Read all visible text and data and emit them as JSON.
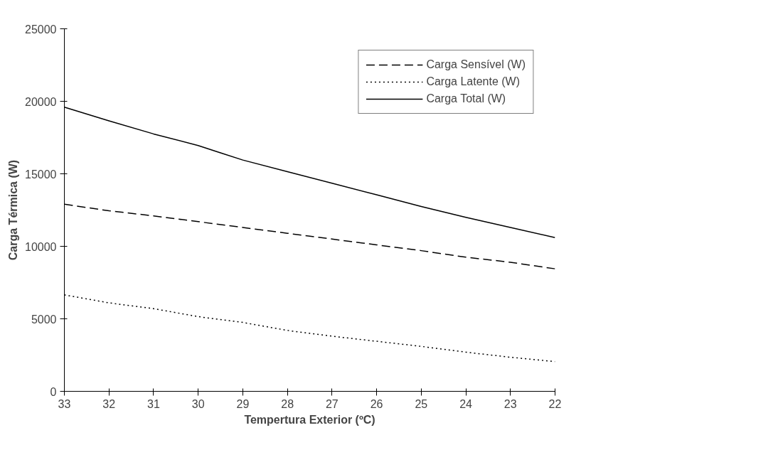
{
  "chart_data": {
    "type": "line",
    "xlabel": "Tempertura Exterior (ºC)",
    "ylabel": "Carga Térmica (W)",
    "xlim": [
      33,
      22
    ],
    "xticks": [
      33,
      32,
      31,
      30,
      29,
      28,
      27,
      26,
      25,
      24,
      23,
      22
    ],
    "ylim": [
      0,
      25000
    ],
    "yticks": [
      0,
      5000,
      10000,
      15000,
      20000,
      25000
    ],
    "grid": false,
    "legend": "top right",
    "series": [
      {
        "name": "Carga Sensível (W)",
        "color": "#000000",
        "line_style": "dashed",
        "x": [
          33,
          32,
          31,
          30,
          29,
          28,
          27,
          26,
          25,
          24,
          23,
          22
        ],
        "values": [
          12900,
          12450,
          12100,
          11700,
          11300,
          10900,
          10500,
          10100,
          9700,
          9250,
          8900,
          8450
        ]
      },
      {
        "name": "Carga Latente (W)",
        "color": "#000000",
        "line_style": "dotted",
        "x": [
          33,
          32,
          31,
          30,
          29,
          28,
          27,
          26,
          25,
          24,
          23,
          22
        ],
        "values": [
          6650,
          6100,
          5700,
          5150,
          4750,
          4200,
          3800,
          3450,
          3100,
          2700,
          2350,
          2050
        ]
      },
      {
        "name": "Carga Total (W)",
        "color": "#000000",
        "line_style": "solid",
        "x": [
          33,
          32,
          31,
          30,
          29.5,
          29,
          28,
          27,
          26,
          25,
          24,
          23,
          22
        ],
        "values": [
          19600,
          18650,
          17750,
          16950,
          16450,
          15950,
          15150,
          14350,
          13550,
          12750,
          12000,
          11300,
          10600
        ]
      }
    ]
  }
}
